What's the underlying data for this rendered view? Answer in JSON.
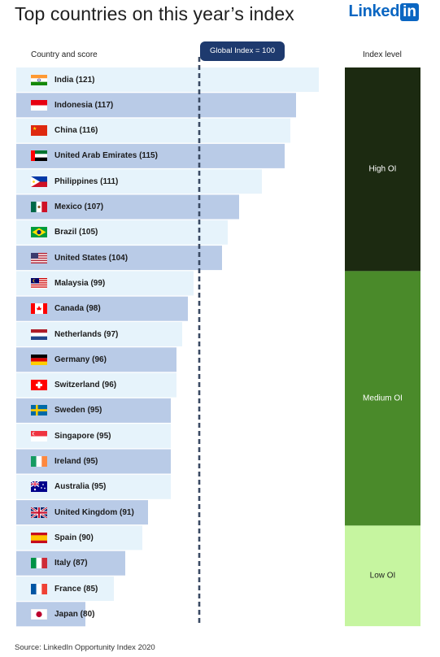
{
  "header": {
    "title": "Top countries on this year’s index",
    "logo_word": "Linked",
    "logo_box": "in"
  },
  "labels": {
    "country_col": "Country and score",
    "index_col": "Index level",
    "global_index": "Global Index = 100",
    "source": "Source: LinkedIn Opportunity Index 2020"
  },
  "colors": {
    "bar_light": "#e6f3fb",
    "bar_dark": "#b9cbe7",
    "dashed_line": "#3a4a63",
    "high": "#1c2a11",
    "medium": "#4a8a2a",
    "low": "#c6f5a0"
  },
  "chart_data": {
    "type": "bar",
    "orientation": "horizontal",
    "title": "Top countries on this year’s index",
    "reference_line": 100,
    "categories": [
      "India",
      "Indonesia",
      "China",
      "United Arab Emirates",
      "Philippines",
      "Mexico",
      "Brazil",
      "United States",
      "Malaysia",
      "Canada",
      "Netherlands",
      "Germany",
      "Switzerland",
      "Sweden",
      "Singapore",
      "Ireland",
      "Australia",
      "United Kingdom",
      "Spain",
      "Italy",
      "France",
      "Japan"
    ],
    "labels": [
      "India (121)",
      "Indonesia (117)",
      "China (116)",
      "United Arab Emirates (115)",
      "Philippines (111)",
      "Mexico (107)",
      "Brazil (105)",
      "United States (104)",
      "Malaysia (99)",
      "Canada (98)",
      "Netherlands (97)",
      "Germany (96)",
      "Switzerland (96)",
      "Sweden (95)",
      "Singapore (95)",
      "Ireland (95)",
      "Australia (95)",
      "United Kingdom (91)",
      "Spain (90)",
      "Italy (87)",
      "France (85)",
      "Japan (80)"
    ],
    "values": [
      121,
      117,
      116,
      115,
      111,
      107,
      105,
      104,
      99,
      98,
      97,
      96,
      96,
      95,
      95,
      95,
      95,
      91,
      90,
      87,
      85,
      80
    ],
    "flags": [
      "india",
      "indonesia",
      "china",
      "uae",
      "philippines",
      "mexico",
      "brazil",
      "usa",
      "malaysia",
      "canada",
      "netherlands",
      "germany",
      "switzerland",
      "sweden",
      "singapore",
      "ireland",
      "australia",
      "uk",
      "spain",
      "italy",
      "france",
      "japan"
    ],
    "index_levels": [
      {
        "label": "High OI",
        "rows": 8,
        "color": "#1c2a11"
      },
      {
        "label": "Medium OI",
        "rows": 10,
        "color": "#4a8a2a"
      },
      {
        "label": "Low OI",
        "rows": 4,
        "color": "#c6f5a0"
      }
    ]
  }
}
